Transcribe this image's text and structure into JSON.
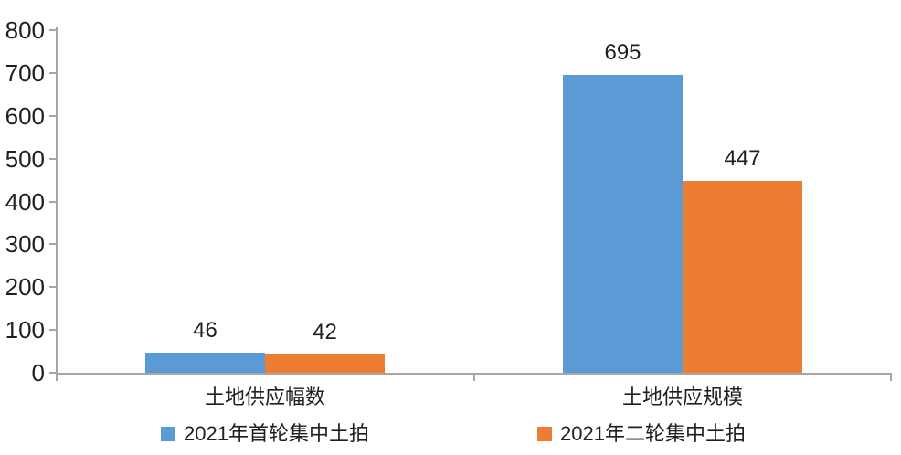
{
  "chart_data": {
    "type": "bar",
    "categories": [
      "土地供应幅数",
      "土地供应规模"
    ],
    "series": [
      {
        "name": "2021年首轮集中土拍",
        "color": "#5B9BD5",
        "values": [
          46,
          695
        ]
      },
      {
        "name": "2021年二轮集中土拍",
        "color": "#ED7D31",
        "values": [
          42,
          447
        ]
      }
    ],
    "ylim": [
      0,
      800
    ],
    "yticks": [
      0,
      100,
      200,
      300,
      400,
      500,
      600,
      700,
      800
    ],
    "grid": false,
    "legend_position": "bottom",
    "axis_color": "#a6a6a6",
    "text_color": "#1f1f1f"
  }
}
